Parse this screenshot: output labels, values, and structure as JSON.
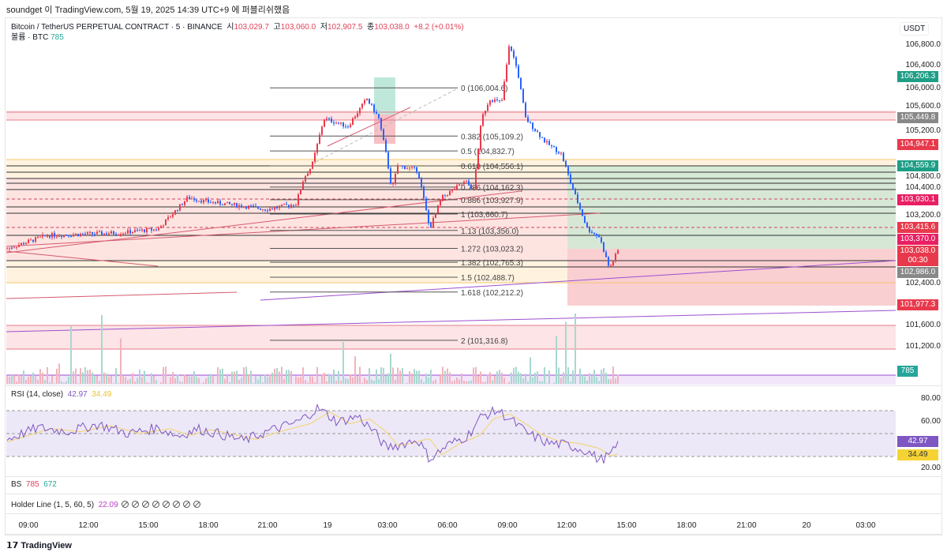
{
  "published": "soundget 이 TradingView.com, 5월 19, 2025 14:39 UTC+9 에 퍼블리쉬했음",
  "symbol": {
    "name": "Bitcoin / TetherUS PERPETUAL CONTRACT · 5 · BINANCE",
    "o_label": "시",
    "o": "103,029.7",
    "h_label": "고",
    "h": "103,060.0",
    "l_label": "저",
    "l": "102,907.5",
    "c_label": "종",
    "c": "103,038.0",
    "chg": "+8.2 (+0.01%)"
  },
  "volume": {
    "label": "볼륨 · BTC",
    "value": "785"
  },
  "currency": "USDT",
  "price_ticks": [
    "106,800.0",
    "106,400.0",
    "106,000.0",
    "105,600.0",
    "105,200.0",
    "104,800.0",
    "104,400.0",
    "103,200.0",
    "102,400.0",
    "101,600.0",
    "101,200.0"
  ],
  "price_tags": [
    {
      "text": "106,206.3",
      "price": 106206.3,
      "color": "#1e9e86"
    },
    {
      "text": "105,449.8",
      "price": 105449.8,
      "color": "#888888"
    },
    {
      "text": "104,947.1",
      "price": 104947.1,
      "color": "#e8394c"
    },
    {
      "text": "104,559.9",
      "price": 104559.9,
      "color": "#1e9e86"
    },
    {
      "text": "103,930.1",
      "price": 103930.1,
      "color": "#e91e63"
    },
    {
      "text": "103,415.6",
      "price": 103415.6,
      "color": "#e8394c"
    },
    {
      "text": "103,370.0",
      "price": 103370.0,
      "color": "#e91e63"
    },
    {
      "text": "103,038.0",
      "price": 103038.0,
      "color": "#e8394c",
      "sub": "00:30"
    },
    {
      "text": "102,986.0",
      "price": 102986.0,
      "color": "#888888"
    },
    {
      "text": "101,977.3",
      "price": 101977.3,
      "color": "#e8394c"
    }
  ],
  "vol_tag": "785",
  "fib": [
    {
      "t": "0 (106,004.6)",
      "p": 106004.6
    },
    {
      "t": "0.382 (105,109.2)",
      "p": 105109.2
    },
    {
      "t": "0.5 (104,832.7)",
      "p": 104832.7
    },
    {
      "t": "0.618 (104,556.1)",
      "p": 104556.1
    },
    {
      "t": "0.786 (104,162.3)",
      "p": 104162.3
    },
    {
      "t": "0.886 (103,927.9)",
      "p": 103927.9
    },
    {
      "t": "1 (103,660.7)",
      "p": 103660.7
    },
    {
      "t": "1.13 (103,356.0)",
      "p": 103356.0
    },
    {
      "t": "1.272 (103,023.2)",
      "p": 103023.2
    },
    {
      "t": "1.382 (102,765.3)",
      "p": 102765.3
    },
    {
      "t": "1.5 (102,488.7)",
      "p": 102488.7
    },
    {
      "t": "1.618 (102,212.2)",
      "p": 102212.2
    },
    {
      "t": "2 (101,316.8)",
      "p": 101316.8
    }
  ],
  "rsi": {
    "label": "RSI (14, close)",
    "value": "42.97",
    "ma": "34.49",
    "ticks": [
      "80.00",
      "60.00",
      "20.00"
    ]
  },
  "bs": {
    "label": "BS",
    "v1": "785",
    "v2": "672"
  },
  "holder": {
    "label": "Holder Line (1, 5, 60, 5)",
    "value": "22.09",
    "icons": 8
  },
  "time_ticks": [
    "09:00",
    "12:00",
    "15:00",
    "18:00",
    "21:00",
    "19",
    "03:00",
    "06:00",
    "09:00",
    "12:00",
    "15:00",
    "18:00",
    "21:00",
    "20",
    "03:00"
  ],
  "brand": "TradingView",
  "colors": {
    "up": "#e8394c",
    "down": "#2962ff",
    "rsi": "#7e57c2",
    "rsi_ma": "#f2d46b"
  },
  "chart_data": {
    "type": "candlestick",
    "title": "Bitcoin / TetherUS PERPETUAL CONTRACT · 5 · BINANCE",
    "x_unit": "hours since 09:00 (day 18)",
    "ylim": [
      100800,
      107000
    ],
    "price_path": [
      [
        -1.1,
        103016
      ],
      [
        0.95,
        103265
      ],
      [
        4.5,
        103310
      ],
      [
        6.5,
        103383
      ],
      [
        8,
        103970
      ],
      [
        8.85,
        103896
      ],
      [
        12,
        103750
      ],
      [
        13.4,
        103852
      ],
      [
        13.8,
        104336
      ],
      [
        14.2,
        104556
      ],
      [
        14.8,
        105436
      ],
      [
        16,
        105289
      ],
      [
        16.95,
        105803
      ],
      [
        17.55,
        105436
      ],
      [
        17.95,
        104703
      ],
      [
        18.2,
        104116
      ],
      [
        18.5,
        104556
      ],
      [
        19.5,
        104483
      ],
      [
        20.1,
        103383
      ],
      [
        20.7,
        103970
      ],
      [
        21.9,
        104263
      ],
      [
        22.3,
        104116
      ],
      [
        22.7,
        105436
      ],
      [
        23.1,
        105803
      ],
      [
        23.7,
        105729
      ],
      [
        24.1,
        106829
      ],
      [
        24.5,
        106316
      ],
      [
        24.9,
        105436
      ],
      [
        25.9,
        104996
      ],
      [
        26.7,
        104776
      ],
      [
        27.2,
        104190
      ],
      [
        28,
        103383
      ],
      [
        28.6,
        103236
      ],
      [
        29.1,
        102649
      ],
      [
        29.6,
        103038
      ]
    ],
    "rsi_path": [
      [
        -1.1,
        45
      ],
      [
        0.5,
        55
      ],
      [
        2,
        52
      ],
      [
        3.5,
        58
      ],
      [
        5,
        50
      ],
      [
        6.5,
        55
      ],
      [
        7.5,
        48
      ],
      [
        8.5,
        54
      ],
      [
        9.5,
        50
      ],
      [
        10.8,
        44
      ],
      [
        12,
        52
      ],
      [
        13.5,
        60
      ],
      [
        14.5,
        72
      ],
      [
        15.5,
        60
      ],
      [
        16.5,
        65
      ],
      [
        17.3,
        52
      ],
      [
        17.9,
        38
      ],
      [
        18.5,
        40
      ],
      [
        19.5,
        45
      ],
      [
        20.1,
        28
      ],
      [
        21,
        40
      ],
      [
        22,
        48
      ],
      [
        22.7,
        65
      ],
      [
        23.5,
        70
      ],
      [
        24.3,
        60
      ],
      [
        25,
        50
      ],
      [
        26,
        42
      ],
      [
        27,
        40
      ],
      [
        28,
        35
      ],
      [
        28.6,
        27
      ],
      [
        29.2,
        32
      ],
      [
        29.6,
        42.97
      ]
    ],
    "levels": {
      "rsi_upper": 70,
      "rsi_mid": 50,
      "rsi_lower": 30
    }
  }
}
